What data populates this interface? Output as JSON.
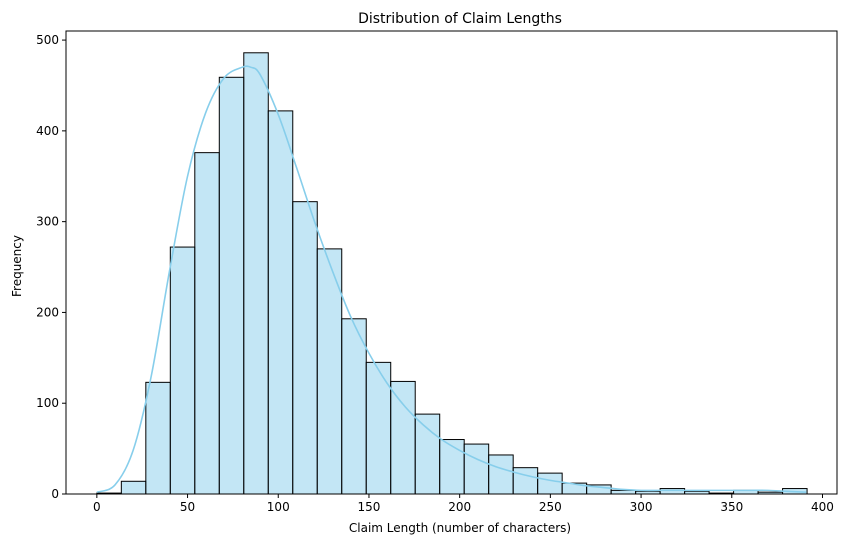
{
  "chart_data": {
    "type": "bar",
    "title": "Distribution of Claim Lengths",
    "xlabel": "Claim Length (number of characters)",
    "ylabel": "Frequency",
    "xlim": [
      -17,
      408
    ],
    "ylim": [
      0,
      510
    ],
    "xticks": [
      0,
      50,
      100,
      150,
      200,
      250,
      300,
      350,
      400
    ],
    "yticks": [
      0,
      100,
      200,
      300,
      400,
      500
    ],
    "grid": false,
    "bin_edges": [
      0,
      13.5,
      27,
      40.5,
      54,
      67.5,
      81,
      94.5,
      108,
      121.5,
      135,
      148.5,
      162,
      175.5,
      189,
      202.5,
      216,
      229.5,
      243,
      256.5,
      270,
      283.5,
      297,
      310.5,
      324,
      337.5,
      351,
      364.5,
      378,
      391.5
    ],
    "counts": [
      1,
      14,
      123,
      272,
      376,
      459,
      486,
      422,
      322,
      270,
      193,
      145,
      124,
      88,
      60,
      55,
      43,
      29,
      23,
      12,
      10,
      4,
      3,
      6,
      3,
      1,
      4,
      2,
      6
    ],
    "bar_fill": "#87ceeb",
    "bar_fill_opacity": 0.5,
    "bar_edge": "#000000",
    "kde_color": "#87ceeb",
    "kde": {
      "x": [
        0,
        10,
        20,
        30,
        40,
        50,
        60,
        70,
        80,
        85,
        90,
        100,
        110,
        120,
        130,
        140,
        150,
        160,
        170,
        180,
        190,
        200,
        210,
        220,
        230,
        240,
        250,
        260,
        270,
        280,
        290,
        300,
        310,
        320,
        330,
        340,
        350,
        360,
        370,
        380,
        391
      ],
      "y": [
        2,
        10,
        48,
        130,
        245,
        350,
        420,
        458,
        470,
        470,
        462,
        418,
        360,
        300,
        245,
        195,
        155,
        122,
        96,
        76,
        60,
        48,
        38,
        30,
        24,
        19,
        15,
        12,
        9,
        7,
        5,
        4,
        4,
        4,
        4,
        4,
        4,
        4,
        4,
        3,
        2
      ]
    }
  }
}
